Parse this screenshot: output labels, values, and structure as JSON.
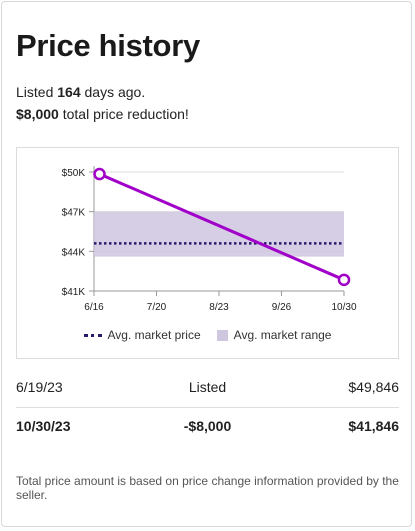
{
  "header": {
    "title": "Price history",
    "listed_prefix": "Listed ",
    "listed_days": "164",
    "listed_suffix": " days ago.",
    "reduction_amount": "$8,000",
    "reduction_suffix": " total price reduction!"
  },
  "chart_data": {
    "type": "line",
    "x_tick_labels": [
      "6/16",
      "7/20",
      "8/23",
      "9/26",
      "10/30"
    ],
    "y_tick_labels": [
      "$41K",
      "$44K",
      "$47K",
      "$50K"
    ],
    "y_ticks": [
      41,
      44,
      47,
      50
    ],
    "x_ticks": [
      "2023-06-16",
      "2023-07-20",
      "2023-08-23",
      "2023-09-26",
      "2023-10-30"
    ],
    "xlim": [
      "2023-06-16",
      "2023-10-30"
    ],
    "ylim": [
      41,
      50
    ],
    "y_unit": "$K",
    "grid": "horizontal",
    "series": [
      {
        "name": "",
        "color": "#a000c8",
        "points": [
          {
            "date": "2023-06-19",
            "value": 49.846
          },
          {
            "date": "2023-10-30",
            "value": 41.846
          }
        ]
      }
    ],
    "avg_market_price": 44.6,
    "avg_market_range": [
      43.6,
      47.0
    ],
    "legend": [
      {
        "label": "Avg. market price",
        "style": "dotted",
        "color": "#2a1a6e"
      },
      {
        "label": "Avg. market range",
        "style": "band",
        "color": "#cfc6e0"
      }
    ],
    "legend_position": "bottom"
  },
  "history": [
    {
      "date": "6/19/23",
      "event": "Listed",
      "price": "$49,846"
    },
    {
      "date": "10/30/23",
      "event": "-$8,000",
      "price": "$41,846"
    }
  ],
  "footnote": "Total price amount is based on price change information provided by the seller."
}
